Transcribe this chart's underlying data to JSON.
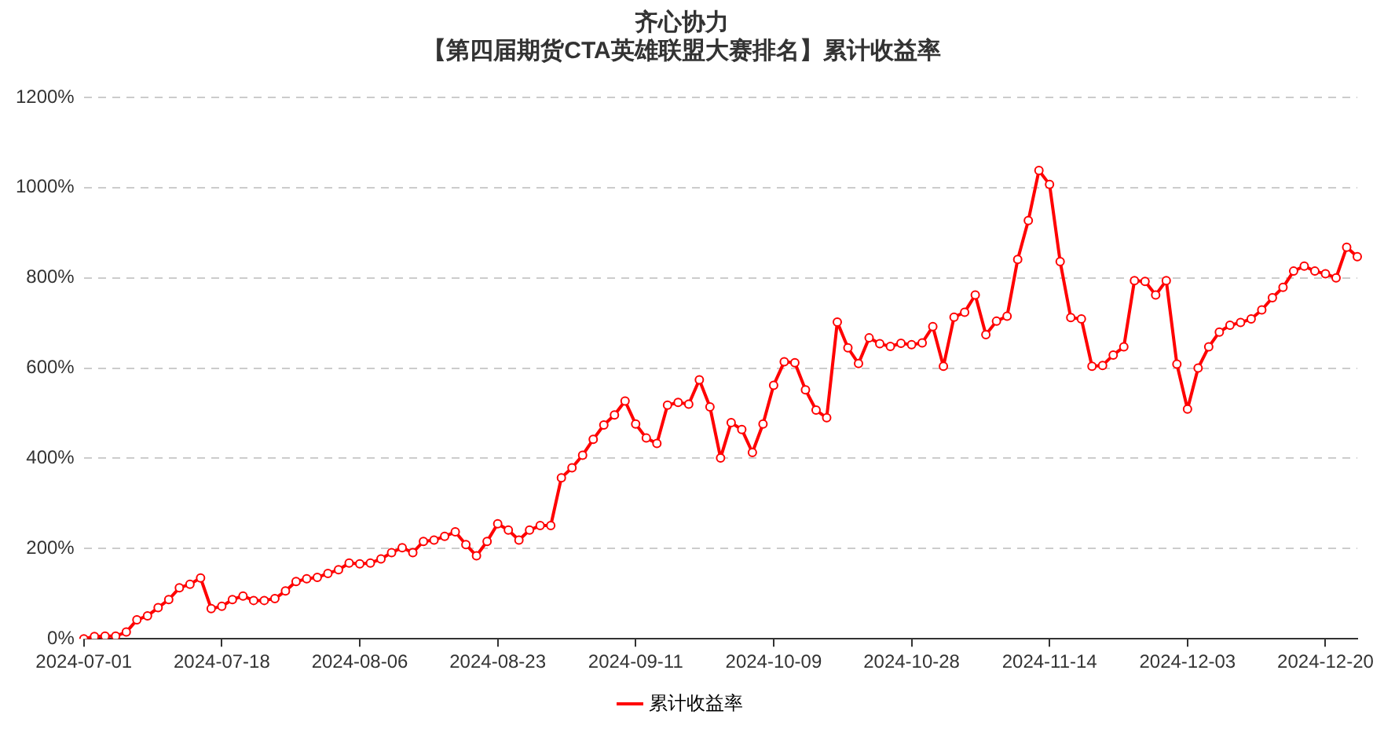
{
  "chart_data": {
    "type": "line",
    "title": "齐心协力",
    "subtitle": "【第四届期货CTA英雄联盟大赛排名】累计收益率",
    "categories": [
      "2024-07-01",
      null,
      null,
      null,
      null,
      null,
      null,
      null,
      null,
      null,
      null,
      null,
      null,
      "2024-07-18",
      null,
      null,
      null,
      null,
      null,
      null,
      null,
      null,
      null,
      null,
      null,
      null,
      "2024-08-06",
      null,
      null,
      null,
      null,
      null,
      null,
      null,
      null,
      null,
      null,
      null,
      null,
      "2024-08-23",
      null,
      null,
      null,
      null,
      null,
      null,
      null,
      null,
      null,
      null,
      null,
      null,
      "2024-09-11",
      null,
      null,
      null,
      null,
      null,
      null,
      null,
      null,
      null,
      null,
      null,
      null,
      "2024-10-09",
      null,
      null,
      null,
      null,
      null,
      null,
      null,
      null,
      null,
      null,
      null,
      null,
      "2024-10-28",
      null,
      null,
      null,
      null,
      null,
      null,
      null,
      null,
      null,
      null,
      null,
      null,
      "2024-11-14",
      null,
      null,
      null,
      null,
      null,
      null,
      null,
      null,
      null,
      null,
      null,
      null,
      "2024-12-03",
      null,
      null,
      null,
      null,
      null,
      null,
      null,
      null,
      null,
      null,
      null,
      null,
      "2024-12-20",
      null,
      null,
      null
    ],
    "series": [
      {
        "name": "累计收益率",
        "color": "#ff0000",
        "values": [
          0,
          5,
          6,
          6,
          15,
          42,
          51,
          69,
          87,
          113,
          121,
          135,
          67,
          72,
          87,
          95,
          85,
          85,
          89,
          106,
          127,
          133,
          136,
          145,
          153,
          168,
          166,
          168,
          177,
          191,
          202,
          191,
          216,
          219,
          227,
          237,
          209,
          184,
          216,
          255,
          241,
          219,
          241,
          251,
          251,
          357,
          379,
          407,
          442,
          474,
          496,
          527,
          476,
          445,
          433,
          518,
          524,
          520,
          574,
          514,
          401,
          479,
          464,
          413,
          476,
          562,
          614,
          612,
          552,
          507,
          490,
          702,
          645,
          610,
          667,
          654,
          648,
          655,
          652,
          656,
          692,
          604,
          713,
          724,
          762,
          674,
          704,
          715,
          841,
          927,
          1038,
          1007,
          836,
          712,
          709,
          604,
          606,
          629,
          647,
          794,
          792,
          762,
          794,
          609,
          509,
          600,
          647,
          680,
          695,
          701,
          709,
          729,
          756,
          779,
          815,
          826,
          815,
          809,
          800,
          868,
          847
        ]
      }
    ],
    "ylim": [
      0,
      1200
    ],
    "yticks": [
      {
        "value": 0,
        "label": "0%"
      },
      {
        "value": 200,
        "label": "200%"
      },
      {
        "value": 400,
        "label": "400%"
      },
      {
        "value": 600,
        "label": "600%"
      },
      {
        "value": 800,
        "label": "800%"
      },
      {
        "value": 1000,
        "label": "1000%"
      },
      {
        "value": 1200,
        "label": "1200%"
      }
    ],
    "grid": "y",
    "legend": "bottom",
    "marker": "circle",
    "line_style": "solid"
  }
}
